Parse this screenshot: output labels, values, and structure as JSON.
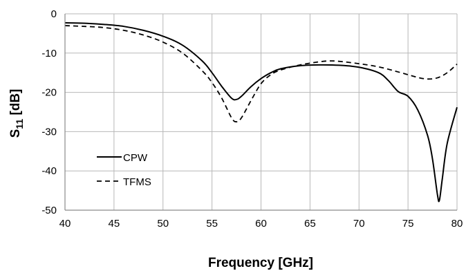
{
  "chart_data": {
    "type": "line",
    "xlabel": "Frequency [GHz]",
    "ylabel": "S11 [dB]",
    "ylabel_parts": {
      "base": "S",
      "sub": "11",
      "rest": " [dB]"
    },
    "xlim": [
      40,
      80
    ],
    "ylim": [
      -50,
      0
    ],
    "x_ticks": [
      40,
      45,
      50,
      55,
      60,
      65,
      70,
      75,
      80
    ],
    "y_ticks": [
      0,
      -10,
      -20,
      -30,
      -40,
      -50
    ],
    "grid": true,
    "legend_position": "bottom-left",
    "series": [
      {
        "name": "CPW",
        "style": "solid",
        "color": "#000000",
        "x": [
          40,
          42,
          44,
          46,
          48,
          50,
          52,
          54,
          55,
          56,
          57,
          57.5,
          58,
          59,
          60,
          61,
          62,
          64,
          66,
          68,
          70,
          72,
          73,
          74,
          75,
          76,
          77,
          77.5,
          78,
          78.2,
          78.5,
          79,
          80
        ],
        "y": [
          -2.3,
          -2.4,
          -2.7,
          -3.2,
          -4.2,
          -5.7,
          -8.0,
          -12.0,
          -15.0,
          -18.5,
          -21.5,
          -21.8,
          -21.0,
          -18.5,
          -16.5,
          -15.0,
          -14.0,
          -13.2,
          -13.0,
          -13.1,
          -13.6,
          -15.0,
          -17.0,
          -19.8,
          -21.0,
          -24.5,
          -31.0,
          -37.0,
          -46.0,
          -47.5,
          -42.0,
          -33.0,
          -23.8
        ]
      },
      {
        "name": "TFMS",
        "style": "dashed",
        "color": "#000000",
        "x": [
          40,
          42,
          44,
          46,
          48,
          50,
          52,
          54,
          55,
          56,
          57,
          57.5,
          58,
          59,
          60,
          61,
          62,
          64,
          66,
          67,
          68,
          70,
          72,
          74,
          75,
          76,
          77,
          78,
          79,
          80
        ],
        "y": [
          -3.0,
          -3.2,
          -3.5,
          -4.2,
          -5.4,
          -7.2,
          -10.0,
          -14.5,
          -17.5,
          -21.5,
          -26.5,
          -27.5,
          -26.5,
          -22.0,
          -17.8,
          -15.5,
          -14.3,
          -13.0,
          -12.2,
          -12.0,
          -12.1,
          -12.7,
          -13.5,
          -14.8,
          -15.5,
          -16.2,
          -16.6,
          -16.3,
          -15.0,
          -12.8
        ]
      }
    ]
  }
}
